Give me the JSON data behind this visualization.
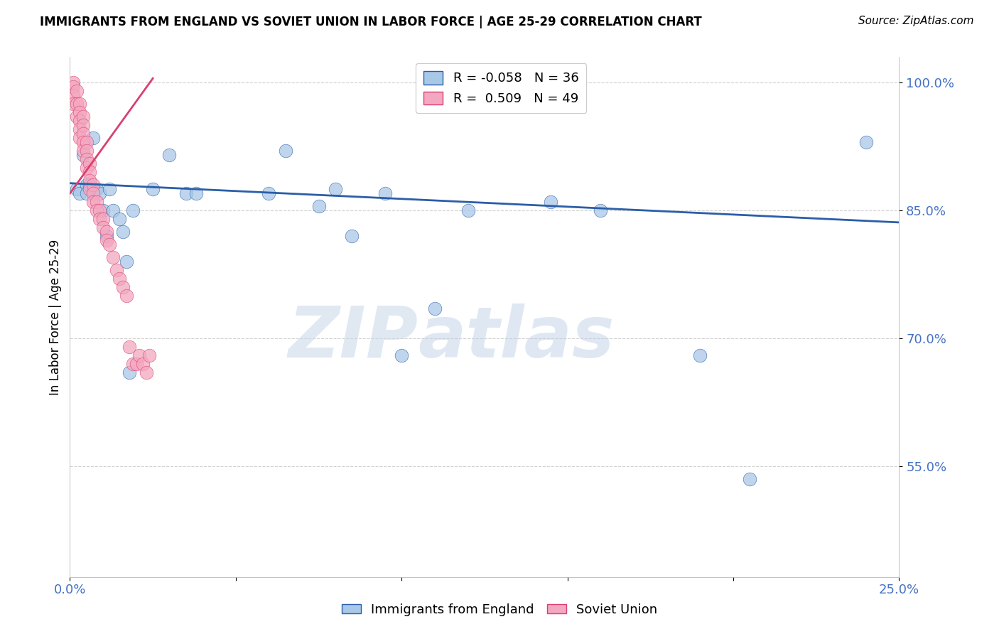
{
  "title": "IMMIGRANTS FROM ENGLAND VS SOVIET UNION IN LABOR FORCE | AGE 25-29 CORRELATION CHART",
  "source": "Source: ZipAtlas.com",
  "ylabel": "In Labor Force | Age 25-29",
  "r_england": -0.058,
  "n_england": 36,
  "r_soviet": 0.509,
  "n_soviet": 49,
  "xlim": [
    0.0,
    0.25
  ],
  "ylim": [
    0.42,
    1.03
  ],
  "yticks": [
    0.55,
    0.7,
    0.85,
    1.0
  ],
  "ytick_labels": [
    "55.0%",
    "70.0%",
    "85.0%",
    "100.0%"
  ],
  "xtick_vals": [
    0.0,
    0.05,
    0.1,
    0.15,
    0.2,
    0.25
  ],
  "xtick_labels": [
    "0.0%",
    "",
    "",
    "",
    "",
    "25.0%"
  ],
  "color_england": "#a8c8e8",
  "color_soviet": "#f4a7c0",
  "trend_color_england": "#2b5ea8",
  "trend_color_soviet": "#d94070",
  "england_x": [
    0.002,
    0.003,
    0.004,
    0.005,
    0.005,
    0.006,
    0.007,
    0.008,
    0.009,
    0.01,
    0.011,
    0.012,
    0.013,
    0.015,
    0.016,
    0.017,
    0.018,
    0.019,
    0.025,
    0.03,
    0.035,
    0.038,
    0.06,
    0.065,
    0.075,
    0.08,
    0.085,
    0.095,
    0.1,
    0.11,
    0.12,
    0.145,
    0.16,
    0.19,
    0.205,
    0.24
  ],
  "england_y": [
    0.875,
    0.87,
    0.915,
    0.88,
    0.87,
    0.88,
    0.935,
    0.875,
    0.87,
    0.85,
    0.82,
    0.875,
    0.85,
    0.84,
    0.825,
    0.79,
    0.66,
    0.85,
    0.875,
    0.915,
    0.87,
    0.87,
    0.87,
    0.92,
    0.855,
    0.875,
    0.82,
    0.87,
    0.68,
    0.735,
    0.85,
    0.86,
    0.85,
    0.68,
    0.535,
    0.93
  ],
  "soviet_x": [
    0.001,
    0.001,
    0.001,
    0.001,
    0.002,
    0.002,
    0.002,
    0.003,
    0.003,
    0.003,
    0.003,
    0.003,
    0.004,
    0.004,
    0.004,
    0.004,
    0.004,
    0.005,
    0.005,
    0.005,
    0.005,
    0.006,
    0.006,
    0.006,
    0.006,
    0.007,
    0.007,
    0.007,
    0.008,
    0.008,
    0.009,
    0.009,
    0.01,
    0.01,
    0.011,
    0.011,
    0.012,
    0.013,
    0.014,
    0.015,
    0.016,
    0.017,
    0.018,
    0.019,
    0.02,
    0.021,
    0.022,
    0.023,
    0.024
  ],
  "soviet_y": [
    1.0,
    0.995,
    0.985,
    0.975,
    0.99,
    0.975,
    0.96,
    0.975,
    0.965,
    0.955,
    0.945,
    0.935,
    0.96,
    0.95,
    0.94,
    0.93,
    0.92,
    0.93,
    0.92,
    0.91,
    0.9,
    0.905,
    0.895,
    0.885,
    0.875,
    0.88,
    0.87,
    0.86,
    0.86,
    0.85,
    0.85,
    0.84,
    0.84,
    0.83,
    0.825,
    0.815,
    0.81,
    0.795,
    0.78,
    0.77,
    0.76,
    0.75,
    0.69,
    0.67,
    0.67,
    0.68,
    0.67,
    0.66,
    0.68
  ],
  "england_trend_x": [
    0.0,
    0.25
  ],
  "england_trend_y": [
    0.882,
    0.836
  ],
  "soviet_trend_x": [
    0.0,
    0.025
  ],
  "soviet_trend_y": [
    0.87,
    1.005
  ],
  "watermark_zip": "ZIP",
  "watermark_atlas": "atlas",
  "background_color": "#ffffff",
  "grid_color": "#d0d0d0",
  "legend_r_england": "R = -0.058",
  "legend_n_england": "N = 36",
  "legend_r_soviet": "R =  0.509",
  "legend_n_soviet": "N = 49"
}
